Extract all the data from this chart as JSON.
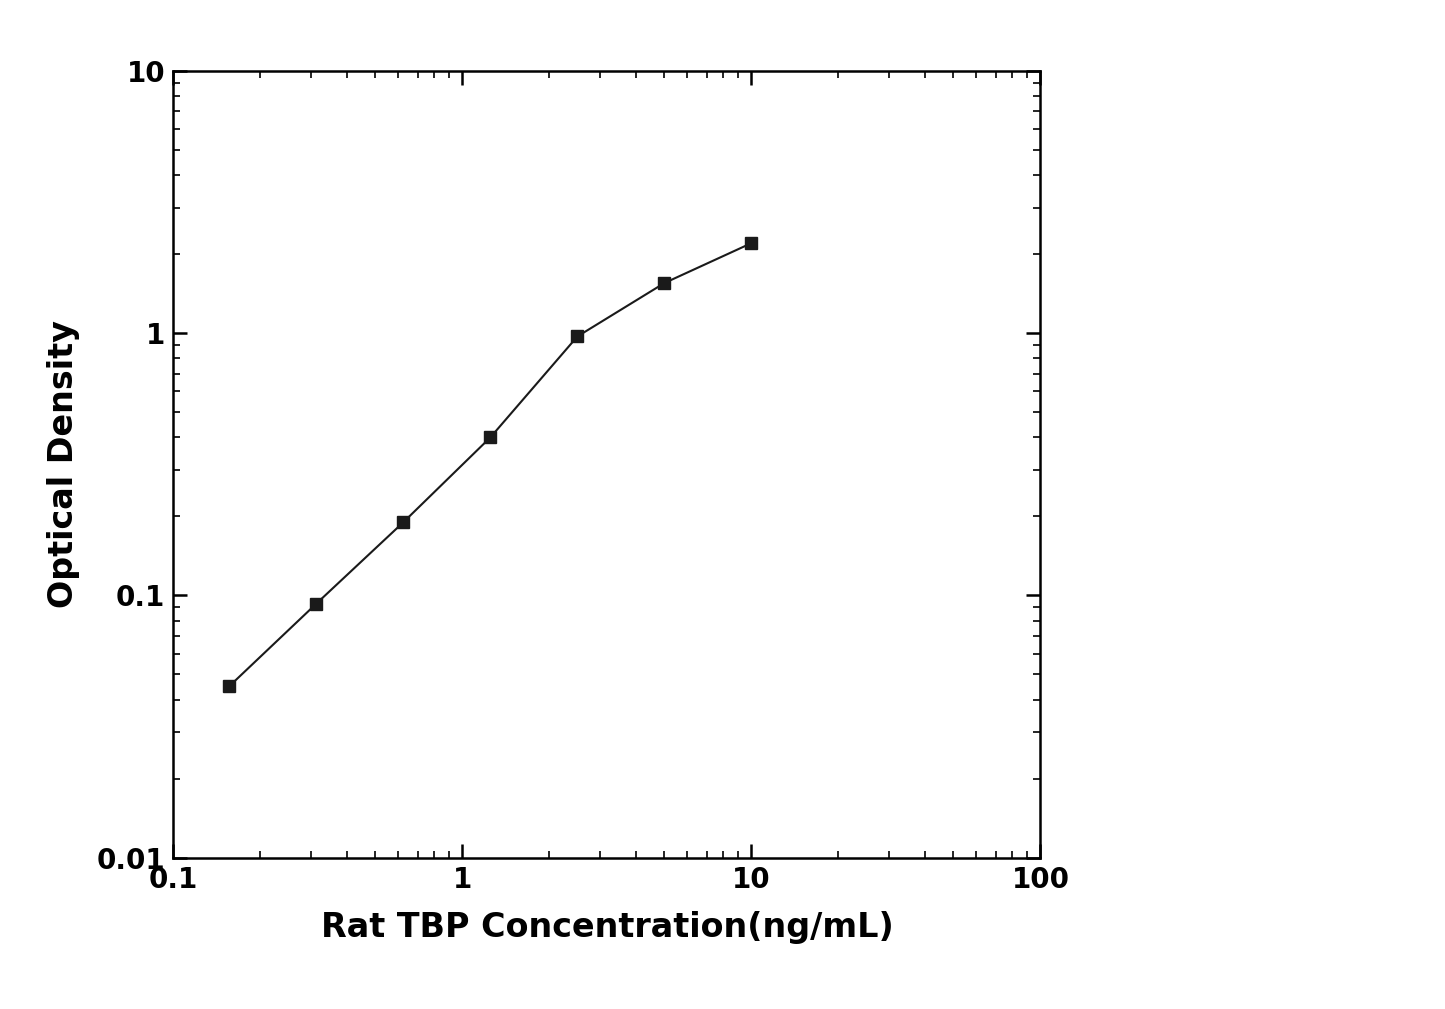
{
  "x": [
    0.156,
    0.3125,
    0.625,
    1.25,
    2.5,
    5.0,
    10.0
  ],
  "y": [
    0.045,
    0.093,
    0.19,
    0.4,
    0.97,
    1.55,
    2.2
  ],
  "xlabel": "Rat TBP Concentration(ng/mL)",
  "ylabel": "Optical Density",
  "xlim": [
    0.1,
    100
  ],
  "ylim": [
    0.01,
    10
  ],
  "line_color": "#1a1a1a",
  "marker_color": "#1a1a1a",
  "marker": "s",
  "marker_size": 9,
  "linewidth": 1.5,
  "xlabel_fontsize": 24,
  "ylabel_fontsize": 24,
  "tick_fontsize": 20,
  "background_color": "#ffffff",
  "spine_linewidth": 1.8
}
